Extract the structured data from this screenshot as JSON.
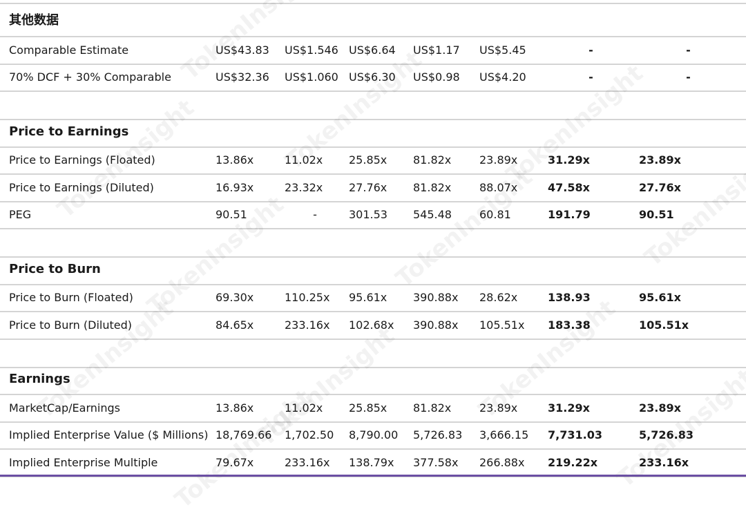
{
  "watermark": "TokenInsight",
  "sections": [
    {
      "title": "其他数据",
      "rows": [
        {
          "label": "Comparable Estimate",
          "cells": [
            "US$43.83",
            "US$1.546",
            "US$6.64",
            "US$1.17",
            "US$5.45",
            "-",
            "-"
          ]
        },
        {
          "label": "70% DCF + 30% Comparable",
          "cells": [
            "US$32.36",
            "US$1.060",
            "US$6.30",
            "US$0.98",
            "US$4.20",
            "-",
            "-"
          ]
        }
      ]
    },
    {
      "title": "Price to Earnings",
      "rows": [
        {
          "label": "Price to Earnings (Floated)",
          "cells": [
            "13.86x",
            "11.02x",
            "25.85x",
            "81.82x",
            "23.89x",
            "31.29x",
            "23.89x"
          ]
        },
        {
          "label": "Price to Earnings (Diluted)",
          "cells": [
            "16.93x",
            "23.32x",
            "27.76x",
            "81.82x",
            "88.07x",
            "47.58x",
            "27.76x"
          ]
        },
        {
          "label": "PEG",
          "cells": [
            "90.51",
            "-",
            "301.53",
            "545.48",
            "60.81",
            "191.79",
            "90.51"
          ]
        }
      ]
    },
    {
      "title": "Price to Burn",
      "rows": [
        {
          "label": "Price to Burn (Floated)",
          "cells": [
            "69.30x",
            "110.25x",
            "95.61x",
            "390.88x",
            "28.62x",
            "138.93",
            "95.61x"
          ]
        },
        {
          "label": "Price to Burn (Diluted)",
          "cells": [
            "84.65x",
            "233.16x",
            "102.68x",
            "390.88x",
            "105.51x",
            "183.38",
            "105.51x"
          ]
        }
      ]
    },
    {
      "title": "Earnings",
      "rows": [
        {
          "label": "MarketCap/Earnings",
          "cells": [
            "13.86x",
            "11.02x",
            "25.85x",
            "81.82x",
            "23.89x",
            "31.29x",
            "23.89x"
          ]
        },
        {
          "label": "Implied Enterprise Value ($ Millions)",
          "cells": [
            "18,769.66",
            "1,702.50",
            "8,790.00",
            "5,726.83",
            "3,666.15",
            "7,731.03",
            "5,726.83"
          ]
        },
        {
          "label": "Implied Enterprise Multiple",
          "cells": [
            "79.67x",
            "233.16x",
            "138.79x",
            "377.58x",
            "266.88x",
            "219.22x",
            "233.16x"
          ]
        }
      ]
    }
  ]
}
